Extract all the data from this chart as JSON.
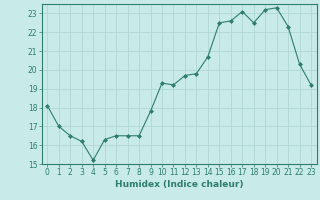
{
  "x": [
    0,
    1,
    2,
    3,
    4,
    5,
    6,
    7,
    8,
    9,
    10,
    11,
    12,
    13,
    14,
    15,
    16,
    17,
    18,
    19,
    20,
    21,
    22,
    23
  ],
  "y": [
    18.1,
    17.0,
    16.5,
    16.2,
    15.2,
    16.3,
    16.5,
    16.5,
    16.5,
    17.8,
    19.3,
    19.2,
    19.7,
    19.8,
    20.7,
    22.5,
    22.6,
    23.1,
    22.5,
    23.2,
    23.3,
    22.3,
    20.3,
    19.2
  ],
  "line_color": "#2e7d6e",
  "marker": "D",
  "marker_size": 2,
  "bg_color": "#c8eae8",
  "grid_color": "#b0d8d4",
  "xlabel": "Humidex (Indice chaleur)",
  "xlim": [
    -0.5,
    23.5
  ],
  "ylim": [
    15,
    23.5
  ],
  "yticks": [
    15,
    16,
    17,
    18,
    19,
    20,
    21,
    22,
    23
  ],
  "xticks": [
    0,
    1,
    2,
    3,
    4,
    5,
    6,
    7,
    8,
    9,
    10,
    11,
    12,
    13,
    14,
    15,
    16,
    17,
    18,
    19,
    20,
    21,
    22,
    23
  ],
  "label_fontsize": 6.5,
  "tick_fontsize": 5.5
}
